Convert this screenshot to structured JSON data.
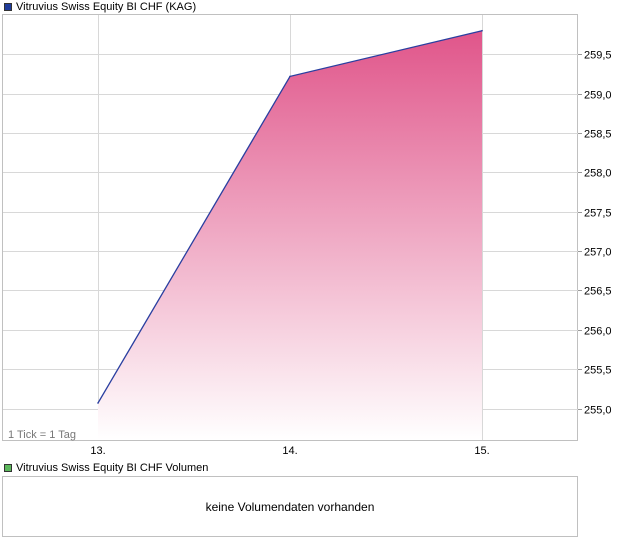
{
  "legend": {
    "price_label": "Vitruvius Swiss Equity BI CHF (KAG)",
    "price_color": "#1f3c9a",
    "volume_label": "Vitruvius Swiss Equity BI CHF Volumen",
    "volume_color": "#5cb85c"
  },
  "tick_note": "1 Tick = 1 Tag",
  "volume": {
    "message": "keine Volumendaten vorhanden"
  },
  "chart_data": {
    "type": "area",
    "x": [
      "13.",
      "14.",
      "15."
    ],
    "series": [
      {
        "name": "Vitruvius Swiss Equity BI CHF (KAG)",
        "values": [
          255.07,
          259.22,
          259.8
        ]
      }
    ],
    "y_ticks": [
      "255,0",
      "255,5",
      "256,0",
      "256,5",
      "257,0",
      "257,5",
      "258,0",
      "258,5",
      "259,0",
      "259,5"
    ],
    "ylim": [
      254.6,
      260.0
    ],
    "y_axis_side": "right",
    "grid": true,
    "line_color": "#2a3fa0",
    "fill_color_top": "#e0558a",
    "fill_color_bottom": "#ffffff"
  }
}
